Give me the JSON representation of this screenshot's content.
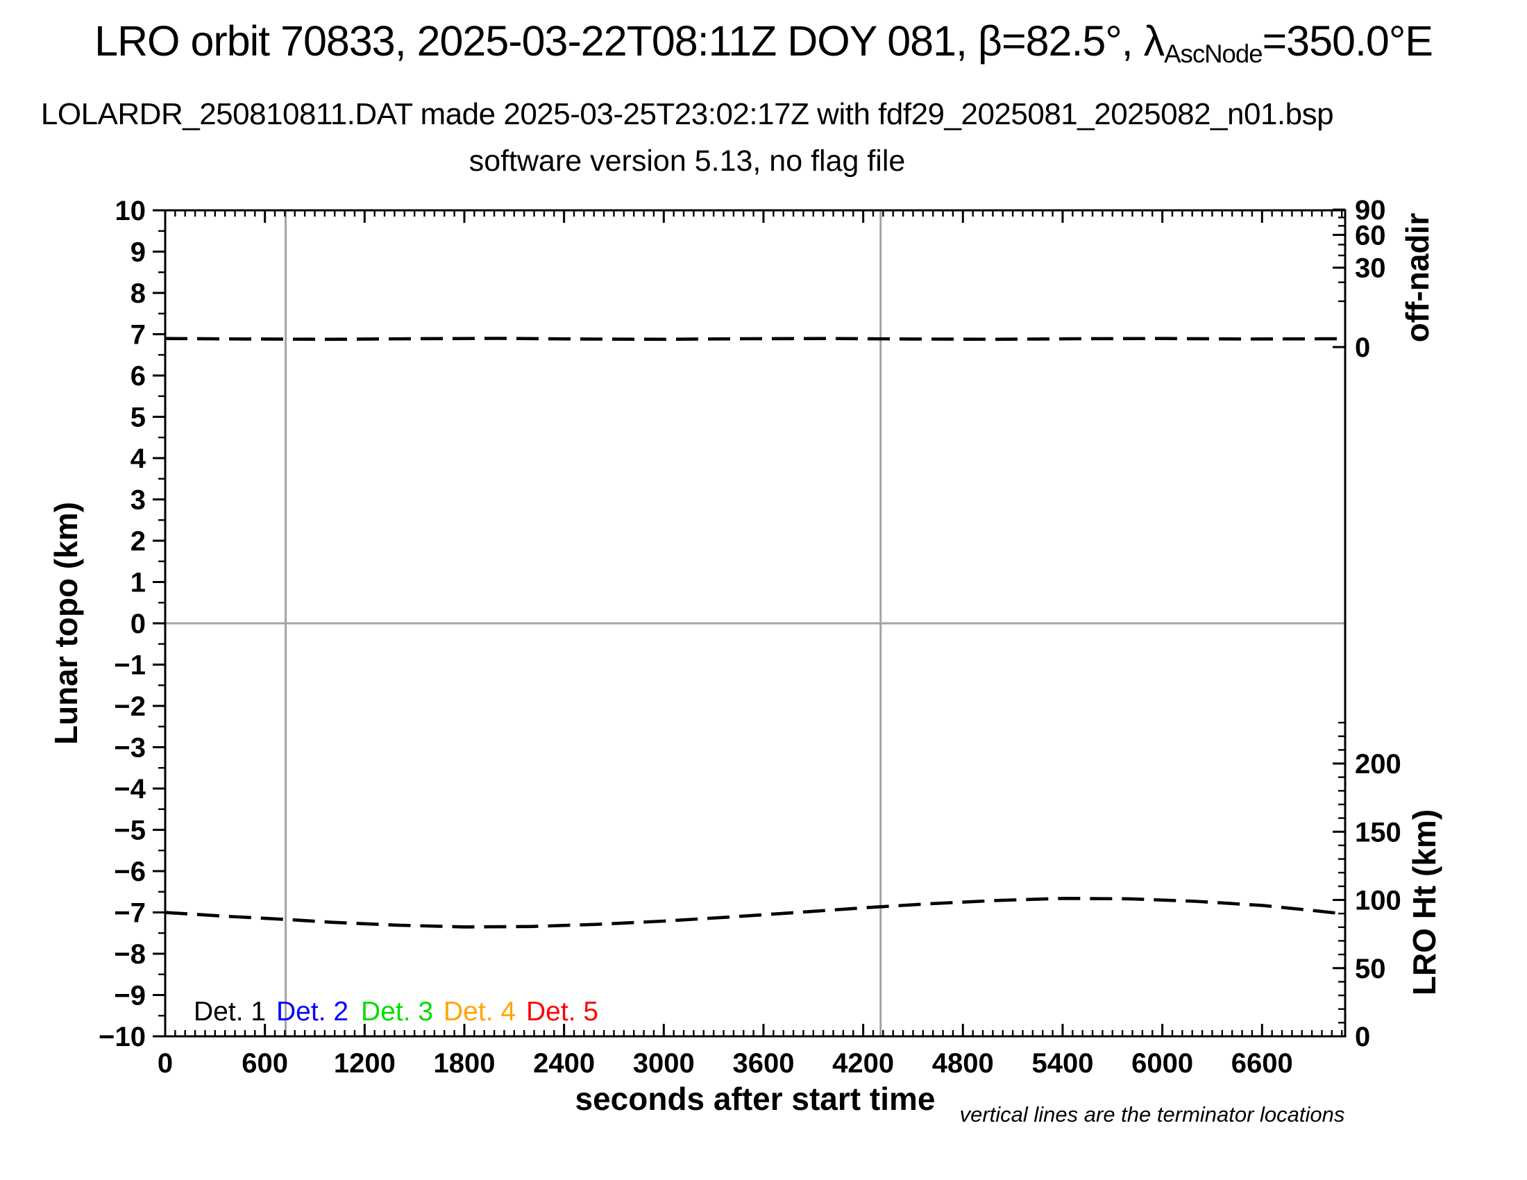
{
  "header": {
    "title_prefix": "LRO orbit 70833, 2025-03-22T08:11Z DOY 081, β=82.5°, λ",
    "title_subscript": "AscNode",
    "title_suffix": "=350.0°E",
    "subtitle": "LOLARDR_250810811.DAT made 2025-03-25T23:02:17Z with fdf29_2025081_2025082_n01.bsp",
    "subtitle2": "software version 5.13, no flag file"
  },
  "chart_data": {
    "type": "line",
    "title": "LRO orbit 70833, 2025-03-22T08:11Z DOY 081, β=82.5°, λAscNode=350.0°E",
    "x_axis": {
      "label": "seconds after start time",
      "min": 0,
      "max": 7100,
      "major_step": 600,
      "minor_step": 60,
      "tick_labels": [
        0,
        600,
        1200,
        1800,
        2400,
        3000,
        3600,
        4200,
        4800,
        5400,
        6000,
        6600
      ]
    },
    "y_left": {
      "label": "Lunar topo (km)",
      "min": -10,
      "max": 10,
      "major_step": 1,
      "minor_step": 0.5
    },
    "y_right_top": {
      "label": "off-nadir",
      "major_ticks": [
        90,
        60,
        30,
        0
      ],
      "minor_ticks": [
        80,
        70,
        50,
        40,
        20,
        10
      ],
      "scale_note": "nonlinear: tick position proportional to sqrt(angle/90)"
    },
    "y_right_bottom": {
      "label": "LRO Ht (km)",
      "major_ticks": [
        200,
        150,
        100,
        50,
        0
      ],
      "minor_step": 10,
      "minor_max": 230
    },
    "series": [
      {
        "id": "off-nadir-curve",
        "name": "off-nadir angle",
        "axis": "off-nadir",
        "style": "dashed",
        "color": "#000000",
        "note": "essentially nadir-pointed, ~0.3 deg for whole orbit",
        "points": [
          [
            0,
            0.35
          ],
          [
            500,
            0.31
          ],
          [
            1000,
            0.29
          ],
          [
            1500,
            0.33
          ],
          [
            2000,
            0.36
          ],
          [
            2500,
            0.31
          ],
          [
            3000,
            0.29
          ],
          [
            3500,
            0.33
          ],
          [
            4000,
            0.35
          ],
          [
            4500,
            0.31
          ],
          [
            5000,
            0.29
          ],
          [
            5500,
            0.33
          ],
          [
            6000,
            0.35
          ],
          [
            6500,
            0.31
          ],
          [
            7080,
            0.33
          ]
        ]
      },
      {
        "id": "lro-height-curve",
        "name": "LRO height",
        "axis": "lro-ht",
        "style": "dashed",
        "color": "#000000",
        "units": "km",
        "points": [
          [
            0,
            90.8
          ],
          [
            400,
            87.8
          ],
          [
            725,
            85.7
          ],
          [
            1000,
            83.6
          ],
          [
            1400,
            81.5
          ],
          [
            1800,
            80.2
          ],
          [
            2200,
            80.5
          ],
          [
            2600,
            82.1
          ],
          [
            3000,
            84.5
          ],
          [
            3400,
            87.5
          ],
          [
            3800,
            90.8
          ],
          [
            4200,
            94.2
          ],
          [
            4600,
            97.2
          ],
          [
            5000,
            99.6
          ],
          [
            5400,
            101.1
          ],
          [
            5800,
            100.8
          ],
          [
            6200,
            99.0
          ],
          [
            6600,
            96.0
          ],
          [
            6900,
            92.3
          ],
          [
            7080,
            89.9
          ]
        ]
      }
    ],
    "terminator_lines_s": [
      725,
      4305
    ],
    "zero_line_topo": 0,
    "legend": [
      {
        "label": "Det. 1",
        "color": "#000000"
      },
      {
        "label": "Det. 2",
        "color": "#0000ff"
      },
      {
        "label": "Det. 3",
        "color": "#00dd00"
      },
      {
        "label": "Det. 4",
        "color": "#ffa500"
      },
      {
        "label": "Det. 5",
        "color": "#ff0000"
      }
    ],
    "footnote": "vertical lines are the terminator locations",
    "colors": {
      "curve": "#000000",
      "grid_gray": "#a3a3a3",
      "frame": "#000000"
    },
    "legend_position": "inside-bottom-left",
    "grid": "off"
  }
}
